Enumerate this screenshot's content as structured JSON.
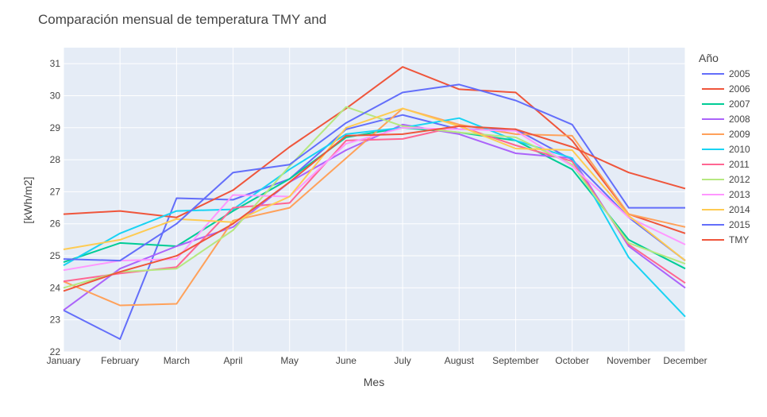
{
  "chart_data": {
    "type": "line",
    "title": "Comparación mensual de temperatura TMY and",
    "xlabel": "Mes",
    "ylabel": "[kWh/m2]",
    "ylim": [
      22,
      31.5
    ],
    "yticks": [
      22,
      23,
      24,
      25,
      26,
      27,
      28,
      29,
      30,
      31
    ],
    "grid": true,
    "legend_title": "Año",
    "legend_position": "right",
    "categories": [
      "January",
      "February",
      "March",
      "April",
      "May",
      "June",
      "July",
      "August",
      "September",
      "October",
      "November",
      "December"
    ],
    "series": [
      {
        "name": "2005",
        "color": "#636efa",
        "values": [
          23.3,
          22.4,
          26.8,
          26.75,
          27.4,
          28.95,
          29.4,
          28.95,
          28.95,
          28.0,
          26.2,
          24.85
        ]
      },
      {
        "name": "2006",
        "color": "#ef553b",
        "values": [
          26.3,
          26.4,
          26.2,
          27.05,
          28.4,
          29.6,
          30.9,
          30.2,
          30.1,
          28.6,
          26.3,
          25.7
        ]
      },
      {
        "name": "2007",
        "color": "#00cc96",
        "values": [
          24.8,
          25.4,
          25.3,
          26.4,
          27.4,
          28.7,
          29.0,
          28.85,
          28.6,
          27.7,
          25.5,
          24.6
        ]
      },
      {
        "name": "2008",
        "color": "#ab63fa",
        "values": [
          23.3,
          24.6,
          25.3,
          25.9,
          27.3,
          28.3,
          29.1,
          28.8,
          28.2,
          28.05,
          25.3,
          24.0
        ]
      },
      {
        "name": "2009",
        "color": "#ffa15a",
        "values": [
          24.2,
          23.45,
          23.5,
          26.1,
          26.5,
          28.05,
          29.6,
          29.1,
          28.8,
          28.75,
          26.3,
          25.9
        ]
      },
      {
        "name": "2010",
        "color": "#19d3f3",
        "values": [
          24.7,
          25.7,
          26.4,
          26.45,
          27.7,
          28.8,
          29.0,
          29.3,
          28.6,
          28.05,
          24.95,
          23.1
        ]
      },
      {
        "name": "2011",
        "color": "#ff6692",
        "values": [
          24.2,
          24.45,
          24.65,
          26.5,
          26.65,
          28.6,
          28.65,
          29.05,
          28.45,
          27.95,
          25.35,
          24.15
        ]
      },
      {
        "name": "2012",
        "color": "#b6e880",
        "values": [
          24.0,
          24.5,
          24.6,
          25.8,
          27.8,
          29.65,
          29.05,
          28.85,
          28.7,
          27.85,
          25.4,
          24.75
        ]
      },
      {
        "name": "2013",
        "color": "#ff97ff",
        "values": [
          24.55,
          24.85,
          24.9,
          26.9,
          26.85,
          28.5,
          29.0,
          28.95,
          28.9,
          27.8,
          26.2,
          25.35
        ]
      },
      {
        "name": "2014",
        "color": "#fecb52",
        "values": [
          25.2,
          25.5,
          26.15,
          26.05,
          26.85,
          29.0,
          29.6,
          29.05,
          28.35,
          28.3,
          26.25,
          24.85
        ]
      },
      {
        "name": "2015",
        "color": "#636efa",
        "values": [
          24.9,
          24.85,
          26.0,
          27.6,
          27.85,
          29.15,
          30.1,
          30.35,
          29.85,
          29.1,
          26.5,
          26.5
        ]
      },
      {
        "name": "TMY",
        "color": "#ef553b",
        "values": [
          23.9,
          24.5,
          25.0,
          26.0,
          27.3,
          28.75,
          28.8,
          29.05,
          28.95,
          28.4,
          27.6,
          27.1
        ]
      }
    ]
  }
}
